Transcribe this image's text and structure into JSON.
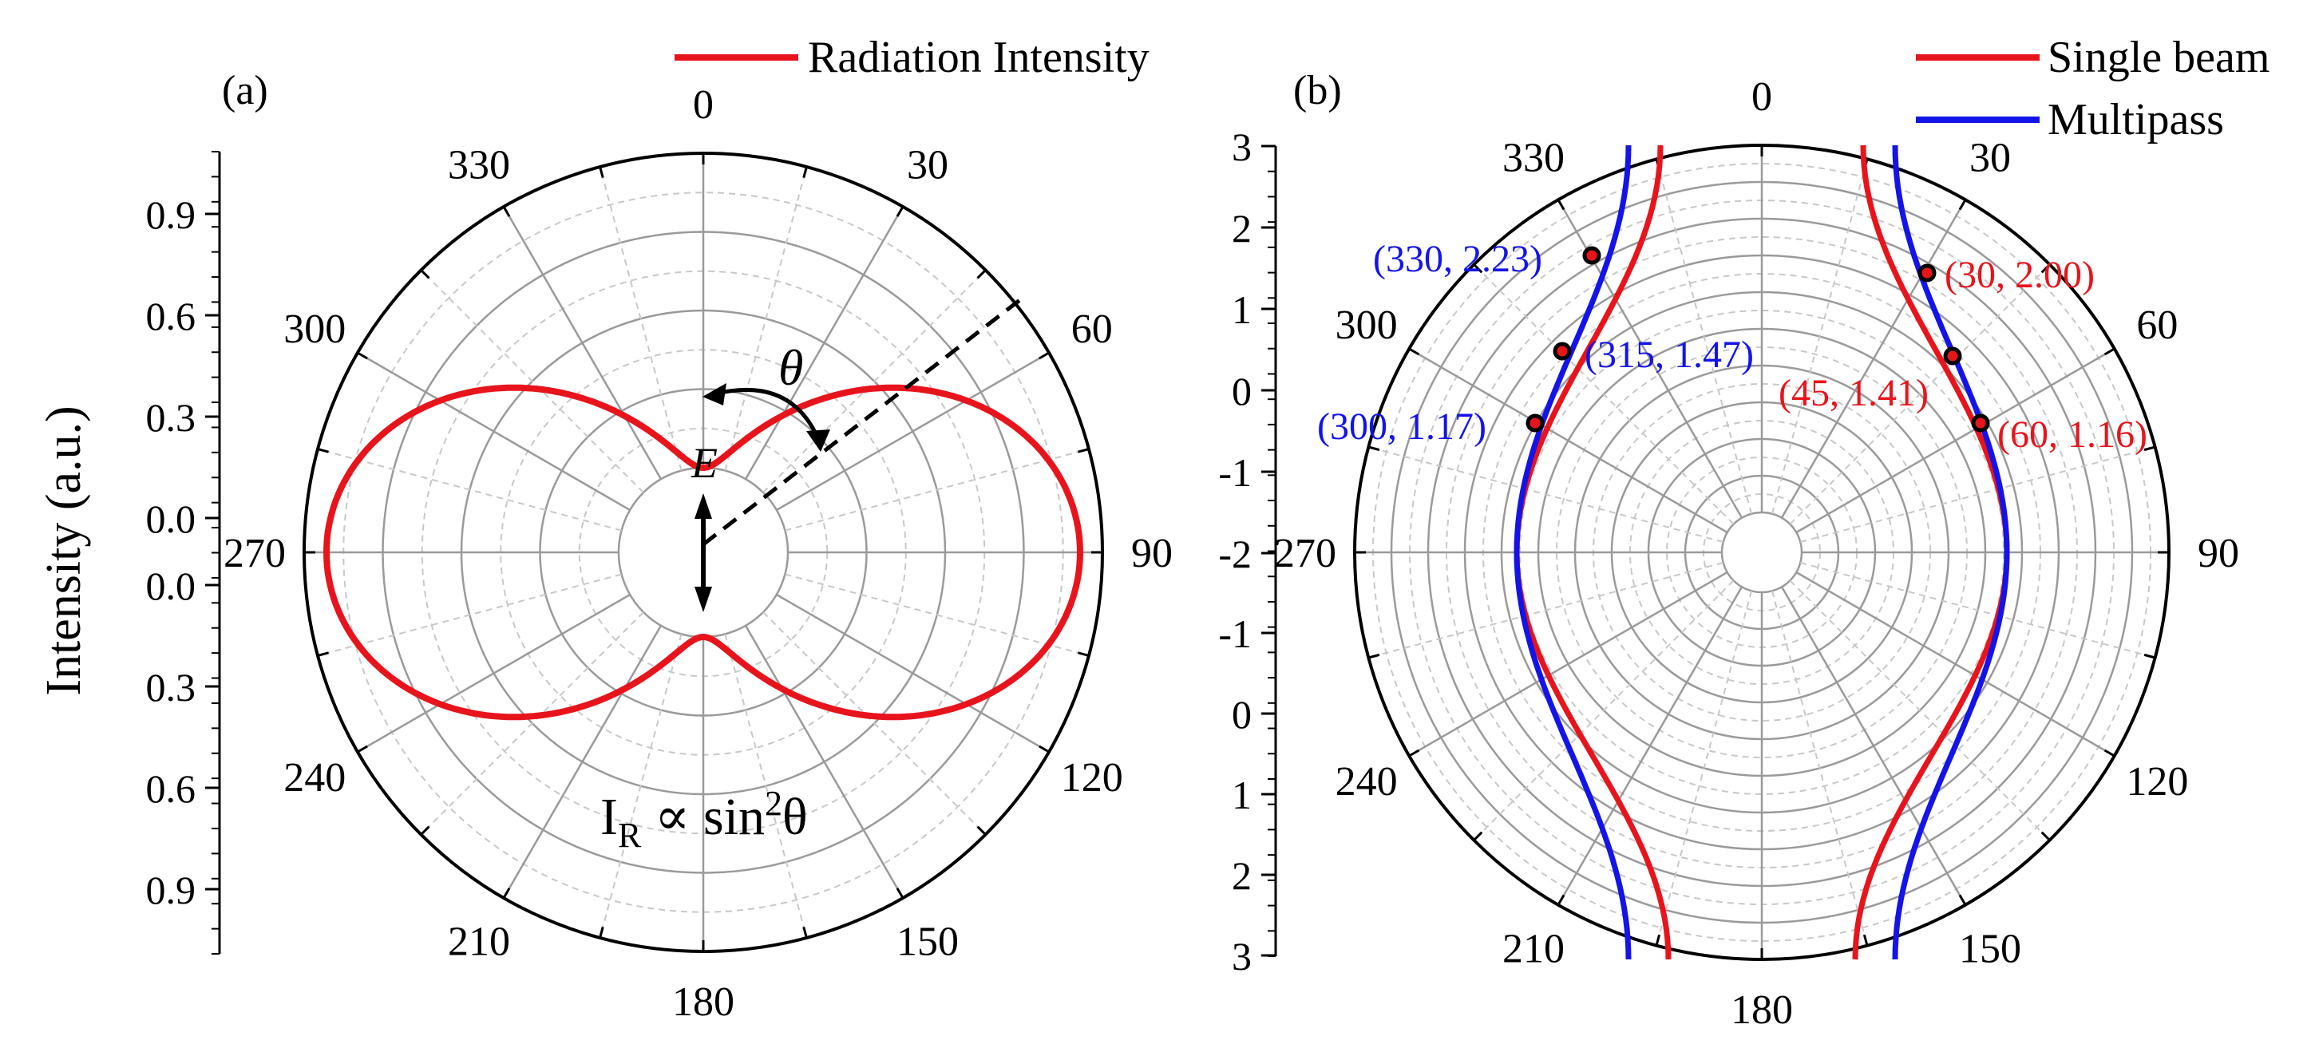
{
  "panel_a": {
    "label": "(a)",
    "legend": "Radiation Intensity",
    "ylabel": "Intensity (a.u.)",
    "formula_main": "I",
    "formula_sub": "R",
    "formula_rest": " ∝ sin",
    "formula_sup": "2",
    "formula_end": "θ",
    "e_label": "E",
    "theta_label": "θ"
  },
  "panel_b": {
    "label": "(b)",
    "legend_single": "Single beam",
    "legend_multi": "Multipass"
  },
  "chart_data": [
    {
      "type": "polar",
      "title": "(a)",
      "angle_labels": [
        "0",
        "30",
        "60",
        "90",
        "120",
        "150",
        "180",
        "210",
        "240",
        "270",
        "300",
        "330"
      ],
      "radial_ticks_top": [
        "0.9",
        "0.6",
        "0.3",
        "0.0"
      ],
      "radial_ticks_bottom": [
        "0.0",
        "0.3",
        "0.6",
        "0.9"
      ],
      "series": [
        {
          "name": "Radiation Intensity",
          "color": "#e8141c",
          "function": "sin^2(theta)",
          "r_max": 1.0,
          "r_origin": 0.1
        }
      ],
      "axis_range": [
        0.1,
        1.1
      ],
      "annotation": "I_R ∝ sin^2 θ"
    },
    {
      "type": "polar",
      "title": "(b)",
      "angle_labels": [
        "0",
        "30",
        "60",
        "90",
        "120",
        "150",
        "180",
        "210",
        "240",
        "270",
        "300",
        "330"
      ],
      "radial_ticks_top": [
        "3",
        "2",
        "1",
        "0",
        "-1",
        "-2"
      ],
      "radial_ticks_bottom": [
        "-1",
        "0",
        "1",
        "2",
        "3"
      ],
      "axis_range": [
        -2.5,
        3.0
      ],
      "series": [
        {
          "name": "Single beam",
          "color": "#e8141c"
        },
        {
          "name": "Multipass",
          "color": "#1414e8"
        }
      ],
      "points": [
        {
          "theta": 330,
          "r": 2.23,
          "label": "(330, 2.23)",
          "color": "#1414e8"
        },
        {
          "theta": 315,
          "r": 1.47,
          "label": "(315, 1.47)",
          "color": "#1414e8"
        },
        {
          "theta": 300,
          "r": 1.17,
          "label": "(300, 1.17)",
          "color": "#1414e8"
        },
        {
          "theta": 30,
          "r": 2.0,
          "label": "(30, 2.00)",
          "color": "#e8141c"
        },
        {
          "theta": 45,
          "r": 1.41,
          "label": "(45, 1.41)",
          "color": "#e8141c"
        },
        {
          "theta": 60,
          "r": 1.16,
          "label": "(60, 1.16)",
          "color": "#e8141c"
        }
      ]
    }
  ]
}
